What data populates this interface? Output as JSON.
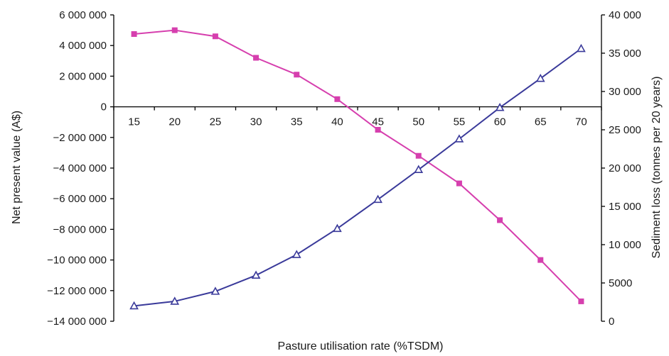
{
  "chart_data": {
    "type": "line",
    "title": "",
    "xlabel": "Pasture utilisation rate (%TSDM)",
    "ylabel": "Net present value (A$)",
    "y2label": "Sediment loss (tonnes per 20 years)",
    "categories": [
      "15",
      "20",
      "25",
      "30",
      "35",
      "40",
      "45",
      "50",
      "55",
      "60",
      "65",
      "70"
    ],
    "x_tick_labels": [
      "15",
      "20",
      "25",
      "30",
      "35",
      "40",
      "45",
      "50",
      "55",
      "60",
      "65",
      "70"
    ],
    "ylim": [
      -14000000,
      6000000
    ],
    "y2lim": [
      0,
      40000
    ],
    "y_ticks": [
      6000000,
      4000000,
      2000000,
      0,
      -2000000,
      -4000000,
      -6000000,
      -8000000,
      -10000000,
      -12000000,
      -14000000
    ],
    "y_tick_labels": [
      "6 000 000",
      "4 000 000",
      "2 000 000",
      "0",
      "−2 000 000",
      "−4 000 000",
      "−6 000 000",
      "−8 000 000",
      "−10 000 000",
      "−12 000 000",
      "−14 000 000"
    ],
    "y2_ticks": [
      40000,
      35000,
      30000,
      25000,
      20000,
      15000,
      10000,
      5000,
      0
    ],
    "y2_tick_labels": [
      "40 000",
      "35 000",
      "30 000",
      "25 000",
      "20 000",
      "15 000",
      "10 000",
      "5000",
      "0"
    ],
    "grid": false,
    "legend": "none",
    "series": [
      {
        "axis": "left",
        "marker": "square",
        "color": "#d63fae",
        "values": [
          4750000,
          5000000,
          4600000,
          3200000,
          2100000,
          500000,
          -1500000,
          -3200000,
          -5000000,
          -7400000,
          -10000000,
          -12700000
        ]
      },
      {
        "axis": "right",
        "marker": "triangle",
        "color": "#3a3a9a",
        "values": [
          2000,
          2600,
          3900,
          6000,
          8700,
          12100,
          15900,
          19800,
          23800,
          27900,
          31700,
          35600
        ]
      }
    ]
  }
}
